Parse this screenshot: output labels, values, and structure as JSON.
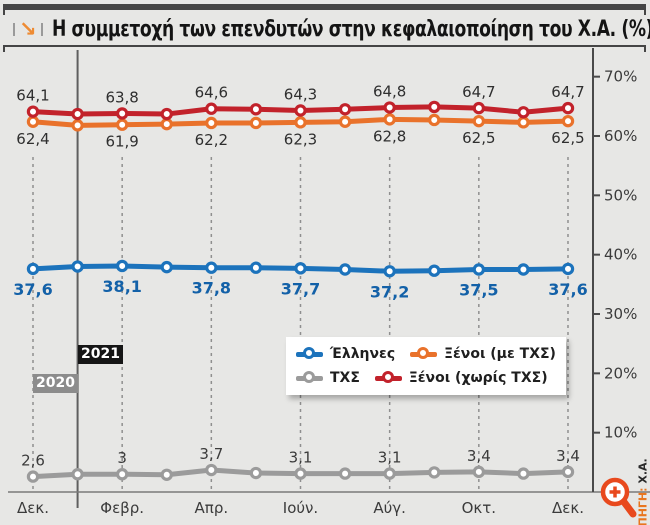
{
  "header": {
    "title": "Η συμμετοχή των επενδυτών στην κεφαλαιοποίηση του Χ.Α. (%)",
    "arrow_icon": "↘"
  },
  "chart_data": {
    "type": "line",
    "title": "Η συμμετοχή των επενδυτών στην κεφαλαιοποίηση του Χ.Α. (%)",
    "x_tick_labels": [
      "Δεκ.",
      "Φεβρ.",
      "Απρ.",
      "Ιούν.",
      "Αύγ.",
      "Οκτ.",
      "Δεκ."
    ],
    "x_tick_indices": [
      0,
      2,
      4,
      6,
      8,
      10,
      12
    ],
    "label_indices": [
      0,
      2,
      4,
      6,
      8,
      10,
      12
    ],
    "y_axis": {
      "ticks": [
        "70%",
        "60%",
        "50%",
        "40%",
        "30%",
        "20%",
        "10%"
      ],
      "tick_values": [
        70,
        60,
        50,
        40,
        30,
        20,
        10
      ],
      "min": 0,
      "max": 74,
      "grid": "dashed-vertical-only",
      "side": "right"
    },
    "series": [
      {
        "name": "Έλληνες",
        "color": "#1c73bc",
        "label_color": "#1361a8",
        "label_position": "below",
        "label_bold": true,
        "values": [
          37.6,
          38.0,
          38.1,
          37.9,
          37.8,
          37.8,
          37.7,
          37.5,
          37.2,
          37.3,
          37.5,
          37.5,
          37.6
        ]
      },
      {
        "name": "Ξένοι (με ΤΧΣ)",
        "color": "#e9722b",
        "label_color": "#2f2f2f",
        "label_position": "below",
        "label_bold": false,
        "values": [
          62.4,
          61.8,
          61.9,
          62.0,
          62.2,
          62.2,
          62.3,
          62.4,
          62.8,
          62.7,
          62.5,
          62.3,
          62.5
        ]
      },
      {
        "name": "ΤΧΣ",
        "color": "#9b9b9b",
        "label_color": "#3b3b3b",
        "label_position": "above",
        "label_bold": false,
        "values": [
          2.6,
          3,
          3,
          2.9,
          3.7,
          3.2,
          3.1,
          3.1,
          3.1,
          3.3,
          3.4,
          3.1,
          3.4
        ]
      },
      {
        "name": "Ξένοι (χωρίς ΤΧΣ)",
        "color": "#c2222b",
        "label_color": "#2f2f2f",
        "label_position": "above",
        "label_bold": false,
        "values": [
          64.1,
          63.7,
          63.8,
          63.7,
          64.6,
          64.5,
          64.3,
          64.5,
          64.8,
          64.9,
          64.7,
          64.0,
          64.7
        ]
      }
    ],
    "draw_order": [
      2,
      0,
      1,
      3
    ],
    "legend_rows": [
      [
        0,
        1
      ],
      [
        2,
        3
      ]
    ],
    "legend_position": "inside-center-bottom",
    "year_markers": [
      {
        "label": "2021",
        "bg": "#161616"
      },
      {
        "label": "2020",
        "bg": "#8c8c8c"
      }
    ]
  },
  "source": {
    "prefix": "ΠΗΓΗ: ",
    "value": "Χ.Α."
  },
  "colors": {
    "background": "#e7e7e5",
    "rule": "#454545",
    "axis": "#4a4a4a",
    "baseline": "#7a7a7a",
    "dashed_grid": "#8f8f8f",
    "separator": "#5f5f5f",
    "accent_orange": "#ee8b33",
    "zoom_icon": "#e8491d"
  }
}
